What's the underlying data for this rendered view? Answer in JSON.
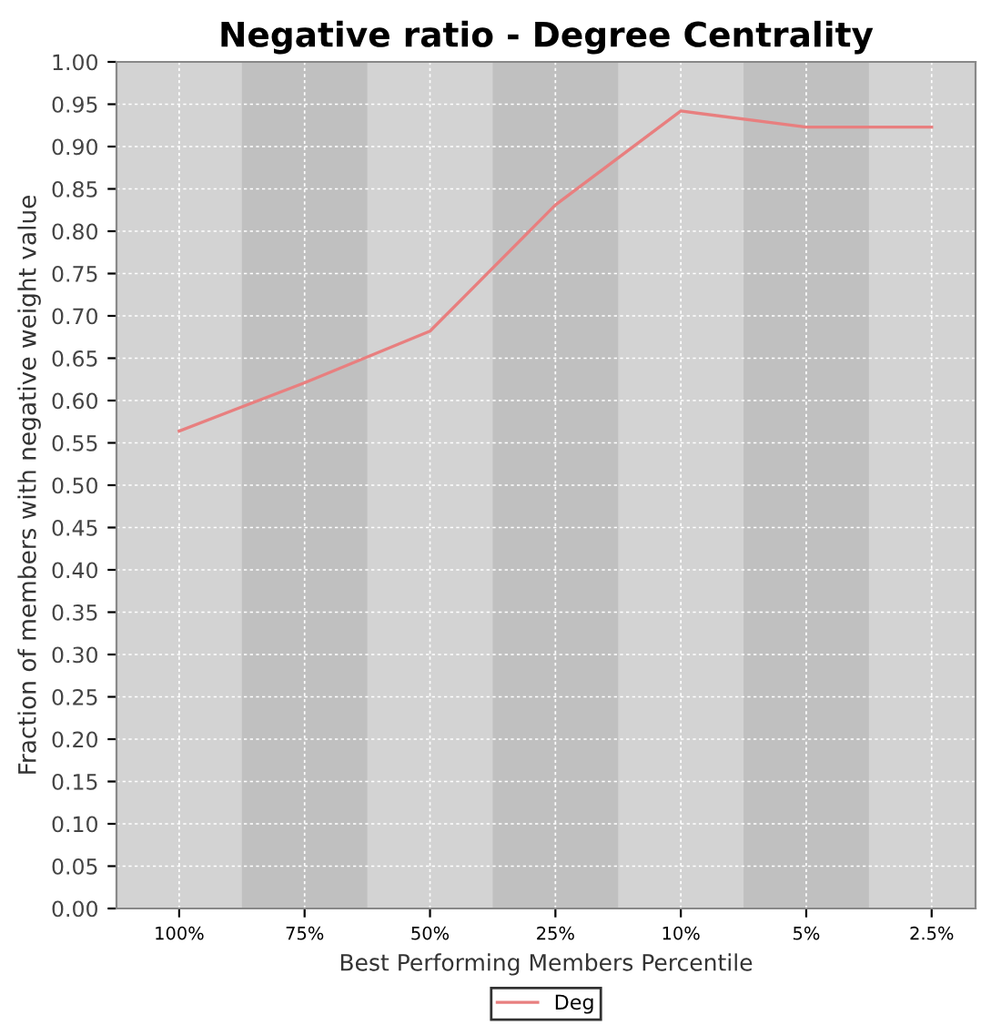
{
  "chart_data": {
    "type": "line",
    "title": "Negative ratio - Degree Centrality",
    "xlabel": "Best Performing Members Percentile",
    "ylabel": "Fraction of members with negative weight value",
    "categories": [
      "100%",
      "75%",
      "50%",
      "25%",
      "10%",
      "5%",
      "2.5%"
    ],
    "series": [
      {
        "name": "Deg",
        "color": "#e87f7f",
        "values": [
          0.564,
          0.621,
          0.682,
          0.831,
          0.942,
          0.923,
          0.923
        ]
      }
    ],
    "ylim": [
      0,
      1
    ],
    "yticks": [
      {
        "value": 0,
        "label": "0.00"
      },
      {
        "value": 0.05,
        "label": "0.05"
      },
      {
        "value": 0.1,
        "label": "0.10"
      },
      {
        "value": 0.15,
        "label": "0.15"
      },
      {
        "value": 0.2,
        "label": "0.20"
      },
      {
        "value": 0.25,
        "label": "0.25"
      },
      {
        "value": 0.3,
        "label": "0.30"
      },
      {
        "value": 0.35,
        "label": "0.35"
      },
      {
        "value": 0.4,
        "label": "0.40"
      },
      {
        "value": 0.45,
        "label": "0.45"
      },
      {
        "value": 0.5,
        "label": "0.50"
      },
      {
        "value": 0.55,
        "label": "0.55"
      },
      {
        "value": 0.6,
        "label": "0.60"
      },
      {
        "value": 0.65,
        "label": "0.65"
      },
      {
        "value": 0.7,
        "label": "0.70"
      },
      {
        "value": 0.75,
        "label": "0.75"
      },
      {
        "value": 0.8,
        "label": "0.80"
      },
      {
        "value": 0.85,
        "label": "0.85"
      },
      {
        "value": 0.9,
        "label": "0.90"
      },
      {
        "value": 0.95,
        "label": "0.95"
      },
      {
        "value": 1,
        "label": "1.00"
      }
    ],
    "bands": [
      {
        "axis": "x",
        "from": "75%",
        "to": "75%",
        "color": "#c0c0c0"
      },
      {
        "axis": "x",
        "from": "25%",
        "to": "25%",
        "color": "#c0c0c0"
      },
      {
        "axis": "x",
        "from": "5%",
        "to": "5%",
        "color": "#c0c0c0"
      }
    ],
    "grid": true,
    "legend": "bottom",
    "marker": "none",
    "line_style": "solid"
  }
}
